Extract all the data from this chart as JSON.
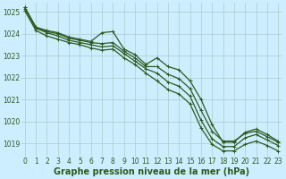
{
  "background_color": "#cceeff",
  "grid_color": "#aacccc",
  "line_color": "#2d5a1e",
  "marker_color": "#2d5a1e",
  "xlabel": "Graphe pression niveau de la mer (hPa)",
  "xlabel_fontsize": 7,
  "ylim": [
    1018.4,
    1025.4
  ],
  "xlim": [
    -0.3,
    23.3
  ],
  "yticks": [
    1019,
    1020,
    1021,
    1022,
    1023,
    1024,
    1025
  ],
  "xticks": [
    0,
    1,
    2,
    3,
    4,
    5,
    6,
    7,
    8,
    9,
    10,
    11,
    12,
    13,
    14,
    15,
    16,
    17,
    18,
    19,
    20,
    21,
    22,
    23
  ],
  "series": [
    [
      1025.2,
      1024.3,
      1024.15,
      1024.05,
      1023.85,
      1023.75,
      1023.65,
      1024.05,
      1024.1,
      1023.3,
      1023.05,
      1022.6,
      1022.9,
      1022.5,
      1022.35,
      1021.85,
      1021.0,
      1019.85,
      1019.05,
      1019.05,
      1019.5,
      1019.65,
      1019.4,
      1019.1
    ],
    [
      1025.2,
      1024.3,
      1024.1,
      1024.0,
      1023.8,
      1023.7,
      1023.6,
      1023.55,
      1023.6,
      1023.2,
      1022.9,
      1022.5,
      1022.5,
      1022.15,
      1021.95,
      1021.5,
      1020.5,
      1019.55,
      1019.1,
      1019.1,
      1019.45,
      1019.55,
      1019.3,
      1019.05
    ],
    [
      1025.15,
      1024.25,
      1024.05,
      1023.9,
      1023.7,
      1023.6,
      1023.5,
      1023.4,
      1023.45,
      1023.1,
      1022.75,
      1022.4,
      1022.2,
      1021.8,
      1021.6,
      1021.15,
      1020.05,
      1019.2,
      1018.85,
      1018.85,
      1019.25,
      1019.4,
      1019.15,
      1018.9
    ],
    [
      1025.05,
      1024.15,
      1023.9,
      1023.75,
      1023.6,
      1023.5,
      1023.35,
      1023.25,
      1023.3,
      1022.9,
      1022.6,
      1022.2,
      1021.85,
      1021.45,
      1021.25,
      1020.8,
      1019.7,
      1018.95,
      1018.65,
      1018.65,
      1018.95,
      1019.1,
      1018.9,
      1018.65
    ]
  ],
  "tick_fontsize": 5.5,
  "marker_size": 2.5,
  "linewidth": 0.9
}
